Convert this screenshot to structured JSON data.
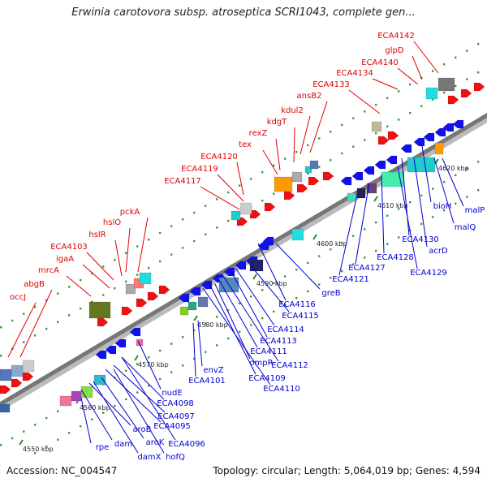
{
  "title": "Erwinia carotovora subsp. atroseptica SCRI1043, complete gen...",
  "footer": {
    "accession": "Accession: NC_004547",
    "summary": "Topology: circular; Length: 5,064,019 bp; Genes: 4,594"
  },
  "colors": {
    "forward_strand_label": "#e00000",
    "reverse_strand_label": "#0000d0",
    "backbone": "#777777",
    "tick": "#2a8a2a"
  },
  "kbp_ticks": [
    "4550 kbp",
    "4560 kbp",
    "4570 kbp",
    "4580 kbp",
    "4590 kbp",
    "4600 kbp",
    "4610 kbp",
    "4620 kbp"
  ],
  "forward_genes": [
    "ECA4142",
    "glpD",
    "ECA4140",
    "ECA4134",
    "ECA4133",
    "ansB2",
    "kdul2",
    "kdgT",
    "rexZ",
    "tex",
    "ECA4120",
    "ECA4119",
    "ECA4117",
    "pckA",
    "hslO",
    "hslR",
    "ECA4103",
    "igaA",
    "mrcA",
    "abgB",
    "occJ"
  ],
  "reverse_genes": [
    "malP",
    "malQ",
    "bioH",
    "acrD",
    "ECA4130",
    "ECA4129",
    "ECA4128",
    "ECA4127",
    "ECA4121",
    "greB",
    "ECA4116",
    "ECA4115",
    "ECA4114",
    "ECA4113",
    "ECA4112",
    "ECA4111",
    "ECA4109",
    "ECA4110",
    "ompR",
    "envZ",
    "ECA4101",
    "nudE",
    "ECA4098",
    "ECA4097",
    "ECA4095",
    "ECA4096",
    "hofQ",
    "aroK",
    "damX",
    "aroB",
    "dam",
    "rpe"
  ]
}
